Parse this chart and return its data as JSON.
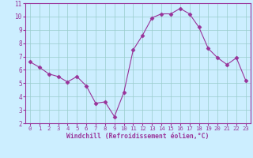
{
  "x": [
    0,
    1,
    2,
    3,
    4,
    5,
    6,
    7,
    8,
    9,
    10,
    11,
    12,
    13,
    14,
    15,
    16,
    17,
    18,
    19,
    20,
    21,
    22,
    23
  ],
  "y": [
    6.6,
    6.2,
    5.7,
    5.5,
    5.1,
    5.5,
    4.8,
    3.5,
    3.6,
    2.5,
    4.3,
    7.5,
    8.6,
    9.9,
    10.2,
    10.2,
    10.6,
    10.2,
    9.2,
    7.6,
    6.9,
    6.4,
    6.9,
    5.2
  ],
  "line_color": "#993399",
  "marker": "D",
  "marker_size": 2.5,
  "bg_color": "#cceeff",
  "grid_color": "#99cccc",
  "xlabel": "Windchill (Refroidissement éolien,°C)",
  "xlabel_color": "#993399",
  "tick_color": "#993399",
  "axis_color": "#993399",
  "xlim": [
    -0.5,
    23.5
  ],
  "ylim": [
    2,
    11
  ],
  "xticks": [
    0,
    1,
    2,
    3,
    4,
    5,
    6,
    7,
    8,
    9,
    10,
    11,
    12,
    13,
    14,
    15,
    16,
    17,
    18,
    19,
    20,
    21,
    22,
    23
  ],
  "yticks": [
    2,
    3,
    4,
    5,
    6,
    7,
    8,
    9,
    10,
    11
  ]
}
